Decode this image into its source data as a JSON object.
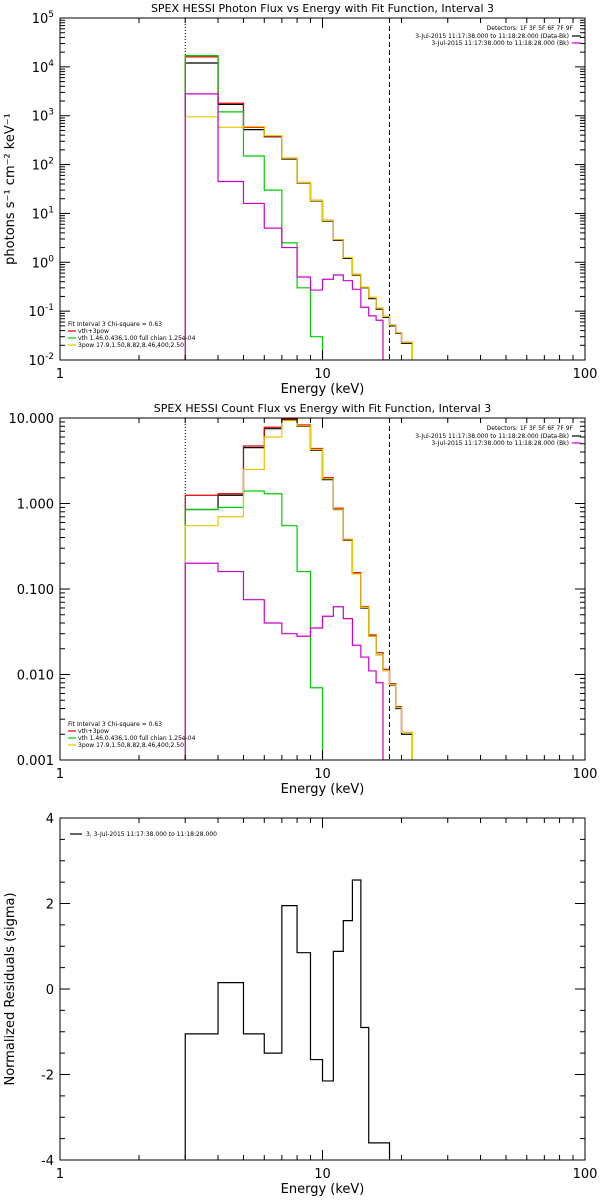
{
  "chart_data": [
    {
      "type": "line",
      "title": "SPEX HESSI Photon Flux vs Energy with Fit Function, Interval 3",
      "xlabel": "Energy (keV)",
      "ylabel": "photons s⁻¹ cm⁻² keV⁻¹",
      "x_scale": "log",
      "y_scale": "log",
      "xlim": [
        1,
        100
      ],
      "ylim": [
        0.01,
        100000
      ],
      "x_ticks": [
        {
          "v": 1,
          "label": "1"
        },
        {
          "v": 10,
          "label": "10"
        },
        {
          "v": 100,
          "label": "100"
        }
      ],
      "y_ticks": [
        {
          "v": 0.01,
          "base": "10",
          "exp": "-2"
        },
        {
          "v": 0.1,
          "base": "10",
          "exp": "-1"
        },
        {
          "v": 1,
          "base": "10",
          "exp": "0"
        },
        {
          "v": 10,
          "base": "10",
          "exp": "1"
        },
        {
          "v": 100,
          "base": "10",
          "exp": "2"
        },
        {
          "v": 1000,
          "base": "10",
          "exp": "3"
        },
        {
          "v": 10000,
          "base": "10",
          "exp": "4"
        },
        {
          "v": 100000,
          "base": "10",
          "exp": "5"
        }
      ],
      "vlines": [
        {
          "x": 3.0,
          "style": "dotted"
        },
        {
          "x": 18.0,
          "style": "dashed"
        }
      ],
      "detectors_text": "Detectors: 1F 3F 5F 6F 7F 9F",
      "legend_right": [
        {
          "text": "3-Jul-2015 11:17:38.000 to 11:18:28.000 (Data-Bk)",
          "color": "#000000"
        },
        {
          "text": "3-Jul-2015 11:17:38.000 to 11:18:28.000 (Bk)",
          "color": "#cc00cc"
        }
      ],
      "legend_left": [
        {
          "text": "Fit Interval 3   Chi-square = 0.63",
          "color": null
        },
        {
          "text": "vth+3pow",
          "color": "#dd0000"
        },
        {
          "text": "vth 1.46,0.436,1.00  full chian 1.25e-04",
          "color": "#00cc00"
        },
        {
          "text": "3pow 17.9,1.50,8.82,8.46,400,2.50",
          "color": "#e8c800"
        }
      ],
      "series": [
        {
          "color": "#000000",
          "edges": [
            3,
            4,
            5,
            6,
            7,
            8,
            9,
            10,
            11,
            12,
            13,
            14,
            15,
            16,
            17,
            18,
            19,
            20,
            22
          ],
          "values": [
            12000,
            1700,
            520,
            370,
            130,
            42,
            18,
            7,
            2.8,
            1.2,
            0.55,
            0.3,
            0.18,
            0.11,
            0.075,
            0.05,
            0.035,
            0.022
          ]
        },
        {
          "color": "#dd0000",
          "edges": [
            3,
            4,
            5,
            6,
            7,
            8,
            9,
            10,
            11,
            12,
            13,
            14,
            15,
            16,
            17,
            18,
            19,
            20,
            22
          ],
          "values": [
            16000,
            1800,
            580,
            380,
            135,
            43,
            18.5,
            7.2,
            2.9,
            1.25,
            0.57,
            0.31,
            0.19,
            0.115,
            0.078,
            0.052,
            0.036,
            0.023
          ]
        },
        {
          "color": "#00cc00",
          "edges": [
            3,
            4,
            5,
            6,
            7,
            8,
            9,
            10
          ],
          "values": [
            17000,
            1200,
            150,
            30,
            2.5,
            0.3,
            0.03
          ]
        },
        {
          "color": "#e8c800",
          "edges": [
            3,
            4,
            5,
            6,
            7,
            8,
            9,
            10,
            11,
            12,
            13,
            14,
            15,
            16,
            17,
            18,
            19,
            20,
            22
          ],
          "values": [
            950,
            580,
            600,
            390,
            135,
            43,
            18.5,
            7.2,
            2.9,
            1.25,
            0.57,
            0.31,
            0.19,
            0.115,
            0.078,
            0.052,
            0.036,
            0.023
          ]
        },
        {
          "color": "#cc00cc",
          "edges": [
            3,
            4,
            5,
            6,
            7,
            8,
            9,
            10,
            11,
            12,
            13,
            14,
            15,
            16,
            17,
            18
          ],
          "values": [
            2800,
            45,
            16,
            5,
            2,
            0.5,
            0.27,
            0.45,
            0.55,
            0.42,
            0.28,
            0.12,
            0.08,
            0.065,
            0.01
          ]
        }
      ]
    },
    {
      "type": "line",
      "title": "SPEX HESSI Count Flux vs Energy with Fit Function, Interval 3",
      "xlabel": "Energy (keV)",
      "ylabel": "",
      "x_scale": "log",
      "y_scale": "log",
      "xlim": [
        1,
        100
      ],
      "ylim": [
        0.001,
        10
      ],
      "x_ticks": [
        {
          "v": 1,
          "label": "1"
        },
        {
          "v": 10,
          "label": "10"
        },
        {
          "v": 100,
          "label": "100"
        }
      ],
      "y_ticks": [
        {
          "v": 0.001,
          "base": "0.001",
          "exp": ""
        },
        {
          "v": 0.01,
          "base": "0.010",
          "exp": ""
        },
        {
          "v": 0.1,
          "base": "0.100",
          "exp": ""
        },
        {
          "v": 1,
          "base": "1.000",
          "exp": ""
        },
        {
          "v": 10,
          "base": "10.000",
          "exp": ""
        }
      ],
      "vlines": [
        {
          "x": 3.0,
          "style": "dotted"
        },
        {
          "x": 18.0,
          "style": "dashed"
        }
      ],
      "detectors_text": "Detectors: 1F 3F 5F 6F 7F 9F",
      "legend_right": [
        {
          "text": "3-Jul-2015 11:17:38.000 to 11:18:28.000 (Data-Bk)",
          "color": "#000000"
        },
        {
          "text": "3-Jul-2015 11:17:38.000 to 11:18:28.000 (Bk)",
          "color": "#cc00cc"
        }
      ],
      "legend_left": [
        {
          "text": "Fit Interval 3   Chi-square = 0.63",
          "color": null
        },
        {
          "text": "vth+3pow",
          "color": "#dd0000"
        },
        {
          "text": "vth 1.46,0.436,1.00  full chian 1.25e-04",
          "color": "#00cc00"
        },
        {
          "text": "3pow 17.9,1.50,8.82,8.46,400,2.50",
          "color": "#e8c800"
        }
      ],
      "series": [
        {
          "color": "#000000",
          "edges": [
            3,
            4,
            5,
            6,
            7,
            8,
            9,
            10,
            11,
            12,
            13,
            14,
            15,
            16,
            17,
            18,
            19,
            20,
            22
          ],
          "values": [
            0.85,
            1.25,
            4.5,
            7.5,
            9.5,
            8.0,
            4.2,
            1.9,
            0.85,
            0.37,
            0.15,
            0.06,
            0.028,
            0.017,
            0.011,
            0.0075,
            0.004,
            0.002
          ]
        },
        {
          "color": "#dd0000",
          "edges": [
            3,
            4,
            5,
            6,
            7,
            8,
            9,
            10,
            11,
            12,
            13,
            14,
            15,
            16,
            17,
            18,
            19,
            20,
            22
          ],
          "values": [
            1.25,
            1.3,
            4.7,
            7.8,
            9.8,
            8.3,
            4.4,
            2.0,
            0.88,
            0.38,
            0.155,
            0.062,
            0.029,
            0.018,
            0.0115,
            0.0078,
            0.0042,
            0.0021
          ]
        },
        {
          "color": "#00cc00",
          "edges": [
            3,
            4,
            5,
            6,
            7,
            8,
            9,
            10
          ],
          "values": [
            0.85,
            0.9,
            1.4,
            1.3,
            0.55,
            0.16,
            0.007
          ]
        },
        {
          "color": "#e8c800",
          "edges": [
            3,
            4,
            5,
            6,
            7,
            8,
            9,
            10,
            11,
            12,
            13,
            14,
            15,
            16,
            17,
            18,
            19,
            20,
            22
          ],
          "values": [
            0.55,
            0.7,
            2.5,
            6.0,
            9.3,
            8.1,
            4.3,
            1.95,
            0.86,
            0.375,
            0.15,
            0.061,
            0.028,
            0.017,
            0.011,
            0.0076,
            0.0041,
            0.0021
          ]
        },
        {
          "color": "#cc00cc",
          "edges": [
            3,
            4,
            5,
            6,
            7,
            8,
            9,
            10,
            11,
            12,
            13,
            14,
            15,
            16,
            17,
            18
          ],
          "values": [
            0.2,
            0.16,
            0.075,
            0.04,
            0.03,
            0.028,
            0.035,
            0.048,
            0.062,
            0.045,
            0.022,
            0.016,
            0.011,
            0.008,
            0.001
          ]
        }
      ]
    },
    {
      "type": "line",
      "title": "",
      "xlabel": "Energy (keV)",
      "ylabel": "Normalized Residuals (sigma)",
      "x_scale": "log",
      "y_scale": "linear",
      "xlim": [
        1,
        100
      ],
      "ylim": [
        -4,
        4
      ],
      "x_ticks": [
        {
          "v": 1,
          "label": "1"
        },
        {
          "v": 10,
          "label": "10"
        },
        {
          "v": 100,
          "label": "100"
        }
      ],
      "y_ticks": [
        {
          "v": -4,
          "base": "-4",
          "exp": ""
        },
        {
          "v": -2,
          "base": "-2",
          "exp": ""
        },
        {
          "v": 0,
          "base": "0",
          "exp": ""
        },
        {
          "v": 2,
          "base": "2",
          "exp": ""
        },
        {
          "v": 4,
          "base": "4",
          "exp": ""
        }
      ],
      "vlines": [],
      "detectors_text": "",
      "legend_right": [],
      "legend_left": [],
      "residual_legend": "3, 3-Jul-2015 11:17:38.000 to 11:18:28.000",
      "series": [
        {
          "color": "#000000",
          "edges": [
            3,
            4,
            5,
            6,
            7,
            8,
            9,
            10,
            11,
            12,
            13,
            14,
            15,
            16,
            17,
            18
          ],
          "values": [
            -1.05,
            0.15,
            -1.05,
            -1.5,
            1.95,
            0.85,
            -1.65,
            -2.15,
            0.88,
            1.6,
            2.55,
            -0.9,
            -3.6,
            -3.6,
            -3.6
          ]
        }
      ]
    }
  ]
}
